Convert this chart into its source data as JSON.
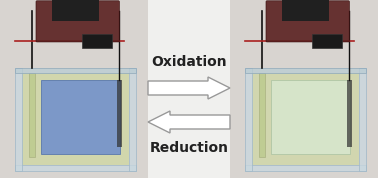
{
  "bg_color": "#e8e8e8",
  "oxidation_text": "Oxidation",
  "reduction_text": "Reduction",
  "text_color": "#222222",
  "text_fontsize": 10,
  "text_fontweight": "bold",
  "arrow_face_color": "#ffffff",
  "arrow_edge_color": "#999999",
  "arrow_lw": 1.0,
  "panel_bg_left": "#d0ccc8",
  "panel_bg_right": "#d4d0cc",
  "divider_color": "#cccccc",
  "left_cell": {
    "glass_color": "#c8d8e0",
    "glass_alpha": 0.55,
    "glass_edge": "#a0b8c8",
    "solution_color": "#ccd890",
    "solution_alpha": 0.55,
    "film_color": "#7090cc",
    "film_alpha": 0.88,
    "film_edge": "#5070aa",
    "electrode_left_color": "#c8c090",
    "electrode_right_color": "#303030",
    "tube_color": "#b8c888",
    "tube_alpha": 0.7,
    "clip_color": "#1a1a1a",
    "wire_color": "#111111",
    "seat_color": "#5a2020",
    "seat_edge": "#3a1010"
  },
  "right_cell": {
    "glass_color": "#c8d8e0",
    "glass_alpha": 0.55,
    "glass_edge": "#a0b8c8",
    "solution_color": "#ccd890",
    "solution_alpha": 0.5,
    "film_color": "#d8e8d0",
    "film_alpha": 0.82,
    "film_edge": "#a8c0a0",
    "electrode_left_color": "#c0c888",
    "electrode_right_color": "#303030",
    "tube_color": "#b8c888",
    "tube_alpha": 0.7,
    "clip_color": "#1a1a1a",
    "wire_color": "#111111",
    "seat_color": "#5a2020",
    "seat_edge": "#3a1010"
  }
}
